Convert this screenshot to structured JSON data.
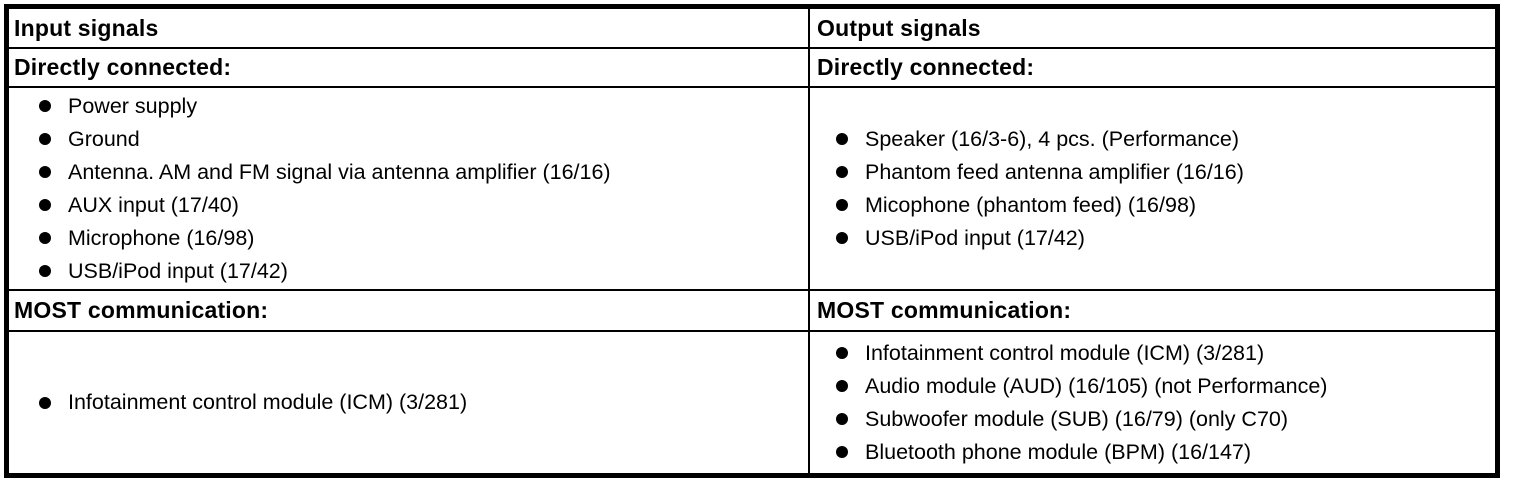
{
  "table": {
    "colors": {
      "border": "#000000",
      "text": "#000000",
      "background": "#ffffff"
    },
    "columns": [
      {
        "header": "Input signals",
        "sections": [
          {
            "title": "Directly connected:",
            "items": [
              "Power supply",
              "Ground",
              "Antenna. AM and FM signal via antenna amplifier (16/16)",
              "AUX input (17/40)",
              "Microphone (16/98)",
              "USB/iPod input (17/42)"
            ]
          },
          {
            "title": "MOST communication:",
            "items": [
              "Infotainment control module (ICM) (3/281)"
            ]
          }
        ]
      },
      {
        "header": "Output signals",
        "sections": [
          {
            "title": "Directly connected:",
            "items": [
              "Speaker (16/3-6), 4 pcs. (Performance)",
              "Phantom feed antenna amplifier (16/16)",
              "Micophone (phantom feed) (16/98)",
              "USB/iPod input (17/42)"
            ]
          },
          {
            "title": "MOST communication:",
            "items": [
              "Infotainment control module (ICM) (3/281)",
              "Audio module (AUD) (16/105) (not Performance)",
              "Subwoofer module (SUB) (16/79) (only C70)",
              "Bluetooth phone module (BPM) (16/147)"
            ]
          }
        ]
      }
    ]
  }
}
